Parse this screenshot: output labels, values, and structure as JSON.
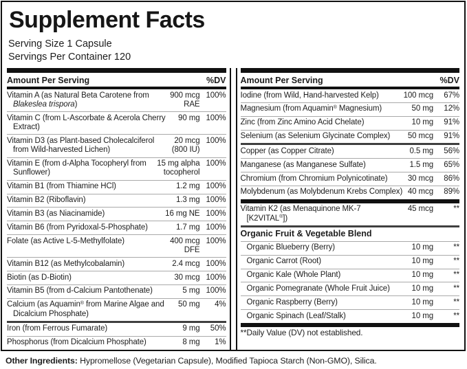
{
  "title": "Supplement Facts",
  "serving_info": {
    "serving_size": "Serving Size 1 Capsule",
    "servings_per_container": "Servings Per Container 120"
  },
  "columns": [
    {
      "header": {
        "amount_label": "Amount Per Serving",
        "dv_label": "%DV"
      },
      "rows": [
        {
          "name": "Vitamin A (as Natural Beta Carotene from *Blakeslea trispora*)",
          "amount": "900 mcg\nRAE",
          "dv": "100%",
          "sep": "none"
        },
        {
          "name": "Vitamin C (from L-Ascorbate & Acerola Cherry Extract)",
          "amount": "90 mg",
          "dv": "100%",
          "sep": "thin"
        },
        {
          "name": "Vitamin D3 (as Plant-based Cholecalciferol from Wild-harvested Lichen)",
          "amount": "20 mcg\n(800 IU)",
          "dv": "100%",
          "sep": "thin"
        },
        {
          "name": "Vitamin E (from d-Alpha Tocopheryl from Sunflower)",
          "amount": "15 mg alpha\ntocopherol",
          "dv": "100%",
          "sep": "thin"
        },
        {
          "name": "Vitamin B1 (from Thiamine HCl)",
          "amount": "1.2 mg",
          "dv": "100%",
          "sep": "thin"
        },
        {
          "name": "Vitamin B2 (Riboflavin)",
          "amount": "1.3 mg",
          "dv": "100%",
          "sep": "thin"
        },
        {
          "name": "Vitamin B3 (as Niacinamide)",
          "amount": "16 mg NE",
          "dv": "100%",
          "sep": "thin"
        },
        {
          "name": "Vitamin B6 (from Pyridoxal-5-Phosphate)",
          "amount": "1.7 mg",
          "dv": "100%",
          "sep": "thin"
        },
        {
          "name": "Folate (as Active L-5-Methylfolate)",
          "amount": "400 mcg\nDFE",
          "dv": "100%",
          "sep": "thin"
        },
        {
          "name": "Vitamin B12 (as Methylcobalamin)",
          "amount": "2.4 mcg",
          "dv": "100%",
          "sep": "thin"
        },
        {
          "name": "Biotin (as D-Biotin)",
          "amount": "30 mcg",
          "dv": "100%",
          "sep": "thin"
        },
        {
          "name": "Vitamin B5 (from d-Calcium Pantothenate)",
          "amount": "5 mg",
          "dv": "100%",
          "sep": "thin"
        },
        {
          "name": "Calcium (as Aquamin® from Marine Algae and Dicalcium Phosphate)",
          "amount": "50 mg",
          "dv": "4%",
          "sep": "thin"
        },
        {
          "name": "Iron (from Ferrous Fumarate)",
          "amount": "9 mg",
          "dv": "50%",
          "sep": "medium"
        },
        {
          "name": "Phosphorus (from Dicalcium Phosphate)",
          "amount": "8 mg",
          "dv": "1%",
          "sep": "thin"
        }
      ]
    },
    {
      "header": {
        "amount_label": "Amount Per Serving",
        "dv_label": "%DV"
      },
      "rows": [
        {
          "name": "Iodine (from Wild, Hand-harvested Kelp)",
          "amount": "100 mcg",
          "dv": "67%",
          "sep": "none"
        },
        {
          "name": "Magnesium (from Aquamin® Magnesium)",
          "amount": "50 mg",
          "dv": "12%",
          "sep": "thin"
        },
        {
          "name": "Zinc (from Zinc Amino Acid Chelate)",
          "amount": "10 mg",
          "dv": "91%",
          "sep": "thin"
        },
        {
          "name": "Selenium (as Selenium Glycinate Complex)",
          "amount": "50 mcg",
          "dv": "91%",
          "sep": "thin"
        },
        {
          "name": "Copper (as Copper Citrate)",
          "amount": "0.5 mg",
          "dv": "56%",
          "sep": "medium"
        },
        {
          "name": "Manganese (as Manganese Sulfate)",
          "amount": "1.5 mg",
          "dv": "65%",
          "sep": "thin"
        },
        {
          "name": "Chromium (from Chromium Polynicotinate)",
          "amount": "30 mcg",
          "dv": "86%",
          "sep": "thin"
        },
        {
          "name": "Molybdenum (as Molybdenum Krebs Complex)",
          "amount": "40 mcg",
          "dv": "89%",
          "sep": "thin"
        },
        {
          "name": "Vitamin K2 (as Menaquinone MK-7 [K2VITAL®])",
          "amount": "45 mcg",
          "dv": "**",
          "sep": "bar"
        },
        {
          "name": "Organic Fruit & Vegetable Blend",
          "type": "section",
          "sep": "medium"
        },
        {
          "name": "Organic Blueberry (Berry)",
          "amount": "10 mg",
          "dv": "**",
          "sep": "thin",
          "indent": true
        },
        {
          "name": "Organic Carrot (Root)",
          "amount": "10 mg",
          "dv": "**",
          "sep": "thin",
          "indent": true
        },
        {
          "name": "Organic Kale (Whole Plant)",
          "amount": "10 mg",
          "dv": "**",
          "sep": "thin",
          "indent": true
        },
        {
          "name": "Organic Pomegranate (Whole Fruit Juice)",
          "amount": "10 mg",
          "dv": "**",
          "sep": "thin",
          "indent": true
        },
        {
          "name": "Organic Raspberry (Berry)",
          "amount": "10 mg",
          "dv": "**",
          "sep": "thin",
          "indent": true
        },
        {
          "name": "Organic Spinach (Leaf/Stalk)",
          "amount": "10 mg",
          "dv": "**",
          "sep": "thin",
          "indent": true
        },
        {
          "name": "**Daily Value (DV) not established.",
          "type": "note",
          "sep": "bar"
        }
      ]
    }
  ],
  "other_ingredients": {
    "label": "Other Ingredients:",
    "text": " Hypromellose (Vegetarian Capsule), Modified Tapioca Starch (Non-GMO), Silica."
  },
  "colors": {
    "background": "#ffffff",
    "text": "#1c1c1c",
    "border": "#111111",
    "thin_separator": "#a9a9a9",
    "medium_separator": "#3f3f3f",
    "bar_separator": "#111111"
  }
}
